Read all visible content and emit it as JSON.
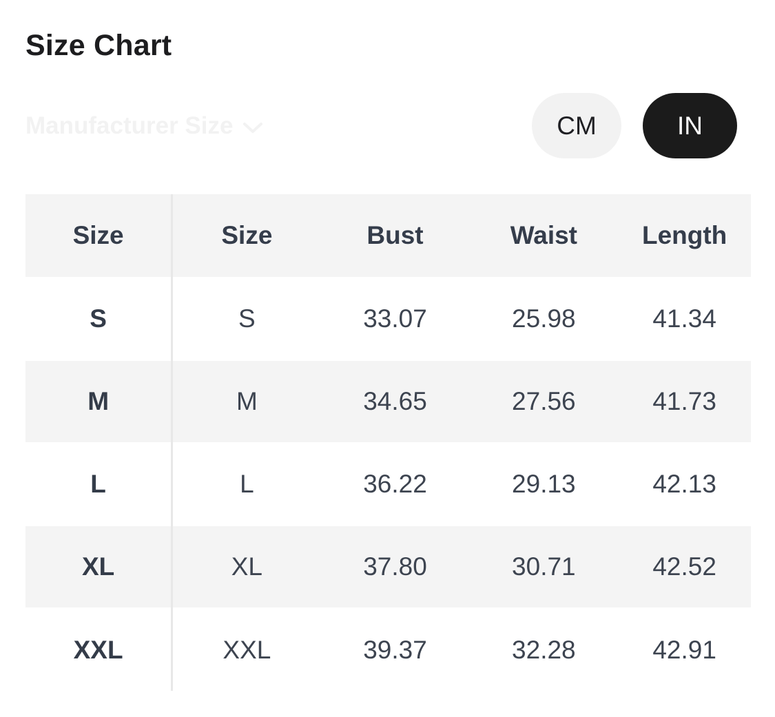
{
  "header": {
    "title": "Size Chart"
  },
  "controls": {
    "manufacturer_label": "Manufacturer Size",
    "manufacturer_icon": "chevron-down-icon",
    "unit_cm_label": "CM",
    "unit_in_label": "IN",
    "selected_unit": "IN"
  },
  "colors": {
    "title_text": "#1d1d1f",
    "faded_label": "#f2f2f2",
    "pill_inactive_bg": "#f2f2f2",
    "pill_active_bg": "#1b1b1b",
    "pill_active_text": "#ffffff",
    "table_stripe_bg": "#f4f4f4",
    "table_header_text": "#353d4b",
    "table_cell_text": "#3d4450",
    "column_divider": "#e8e8e8"
  },
  "table": {
    "headers": [
      "Size",
      "Size",
      "Bust",
      "Waist",
      "Length"
    ],
    "rows": [
      [
        "S",
        "S",
        "33.07",
        "25.98",
        "41.34"
      ],
      [
        "M",
        "M",
        "34.65",
        "27.56",
        "41.73"
      ],
      [
        "L",
        "L",
        "36.22",
        "29.13",
        "42.13"
      ],
      [
        "XL",
        "XL",
        "37.80",
        "30.71",
        "42.52"
      ],
      [
        "XXL",
        "XXL",
        "39.37",
        "32.28",
        "42.91"
      ]
    ]
  }
}
